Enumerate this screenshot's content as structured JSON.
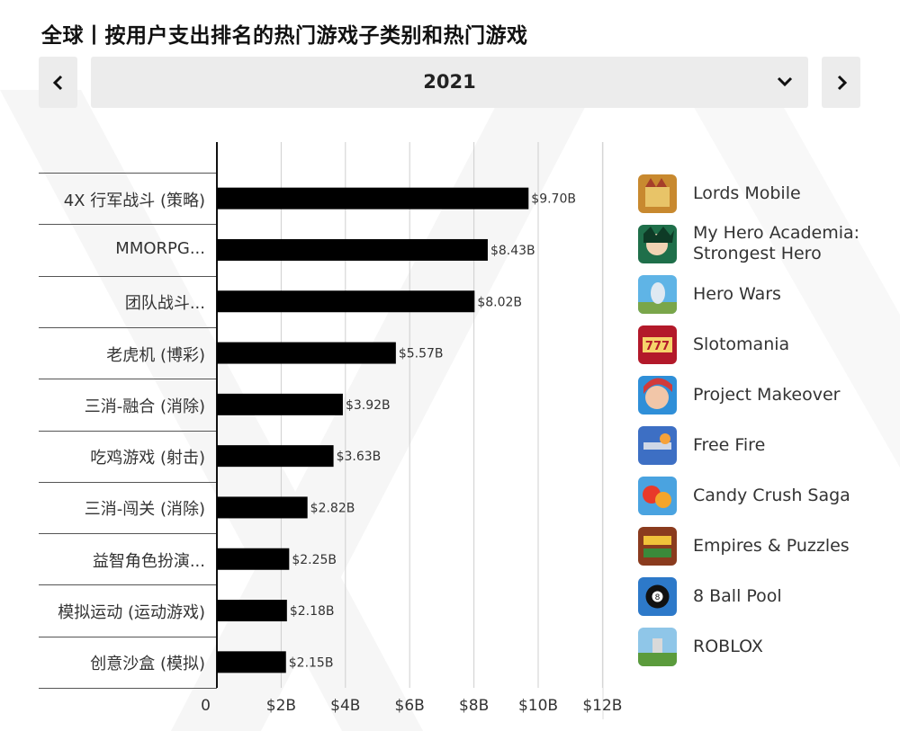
{
  "title": "全球丨按用户支出排名的热门游戏子类别和热门游戏",
  "nav": {
    "prev_icon": "chevron-left-icon",
    "next_icon": "chevron-right-icon"
  },
  "year_selector": {
    "value": "2021",
    "icon": "chevron-down-icon"
  },
  "chart_data": {
    "type": "bar",
    "orientation": "horizontal",
    "categories": [
      "4X 行军战斗 (策略)",
      "MMORPG...",
      "团队战斗...",
      "老虎机 (博彩)",
      "三消-融合 (消除)",
      "吃鸡游戏 (射击)",
      "三消-闯关 (消除)",
      "益智角色扮演...",
      "模拟运动 (运动游戏)",
      "创意沙盒 (模拟)"
    ],
    "values": [
      9.7,
      8.43,
      8.02,
      5.57,
      3.92,
      3.63,
      2.82,
      2.25,
      2.18,
      2.15
    ],
    "value_labels": [
      "$9.70B",
      "$8.43B",
      "$8.02B",
      "$5.57B",
      "$3.92B",
      "$3.63B",
      "$2.82B",
      "$2.25B",
      "$2.18B",
      "$2.15B"
    ],
    "xlim": [
      0,
      12
    ],
    "x_ticks": [
      "0",
      "$2B",
      "$4B",
      "$6B",
      "$8B",
      "$10B",
      "$12B"
    ],
    "grid": true,
    "bar_color": "#000000"
  },
  "top_games": [
    {
      "name": "Lords Mobile",
      "icon": "lords-mobile-icon"
    },
    {
      "name": "My Hero Academia: Strongest Hero",
      "icon": "my-hero-academia-icon"
    },
    {
      "name": "Hero Wars",
      "icon": "hero-wars-icon"
    },
    {
      "name": "Slotomania",
      "icon": "slotomania-icon"
    },
    {
      "name": "Project Makeover",
      "icon": "project-makeover-icon"
    },
    {
      "name": "Free Fire",
      "icon": "free-fire-icon"
    },
    {
      "name": "Candy Crush Saga",
      "icon": "candy-crush-icon"
    },
    {
      "name": "Empires & Puzzles",
      "icon": "empires-puzzles-icon"
    },
    {
      "name": "8 Ball Pool",
      "icon": "8-ball-pool-icon"
    },
    {
      "name": "ROBLOX",
      "icon": "roblox-icon"
    }
  ]
}
